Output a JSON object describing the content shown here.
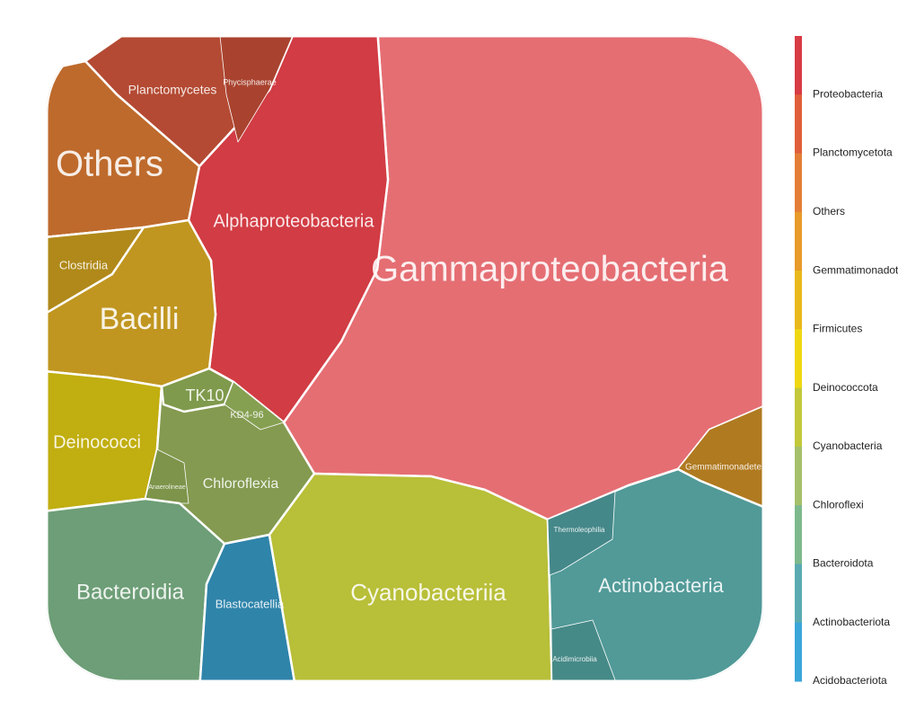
{
  "cells": [
    {
      "label": "Gammaproteobacteria",
      "color": "#e56e73"
    },
    {
      "label": "Alphaproteobacteria",
      "color": "#d23c44"
    },
    {
      "label": "Planctomycetes",
      "color": "#b44a33"
    },
    {
      "label": "Phycisphaerae",
      "color": "#a9432f"
    },
    {
      "label": "Others",
      "color": "#be6a2c"
    },
    {
      "label": "Bacilli",
      "color": "#c09620"
    },
    {
      "label": "Clostridia",
      "color": "#b0891a"
    },
    {
      "label": "Deinococci",
      "color": "#c1ae10"
    },
    {
      "label": "Chloroflexia",
      "color": "#849a50"
    },
    {
      "label": "TK10",
      "color": "#7f9a4c"
    },
    {
      "label": "KD4-96",
      "color": "#86a052"
    },
    {
      "label": "Anaerolineae",
      "color": "#7d944a"
    },
    {
      "label": "Bacteroidia",
      "color": "#6d9e77"
    },
    {
      "label": "Blastocatellia",
      "color": "#2f84aa"
    },
    {
      "label": "Cyanobacteriia",
      "color": "#b8bf38"
    },
    {
      "label": "Gemmatimonadetes",
      "color": "#b07a20"
    },
    {
      "label": "Actinobacteria",
      "color": "#519a98"
    },
    {
      "label": "Thermoleophilia",
      "color": "#45888a"
    },
    {
      "label": "Acidimicrobiia",
      "color": "#468a88"
    }
  ],
  "legend": [
    {
      "label": "Proteobacteria",
      "color": "#d83c45"
    },
    {
      "label": "Planctomycetota",
      "color": "#e05f3b"
    },
    {
      "label": "Others",
      "color": "#e47e37"
    },
    {
      "label": "Gemmatimonadota",
      "color": "#e89a2a"
    },
    {
      "label": "Firmicutes",
      "color": "#e9b91c"
    },
    {
      "label": "Deinococcota",
      "color": "#efd812"
    },
    {
      "label": "Cyanobacteria",
      "color": "#c2c83a"
    },
    {
      "label": "Chloroflexi",
      "color": "#a5c06a"
    },
    {
      "label": "Bacteroidota",
      "color": "#7db98c"
    },
    {
      "label": "Actinobacteriota",
      "color": "#5aabb1"
    },
    {
      "label": "Acidobacteriota",
      "color": "#3aa6d9"
    }
  ]
}
